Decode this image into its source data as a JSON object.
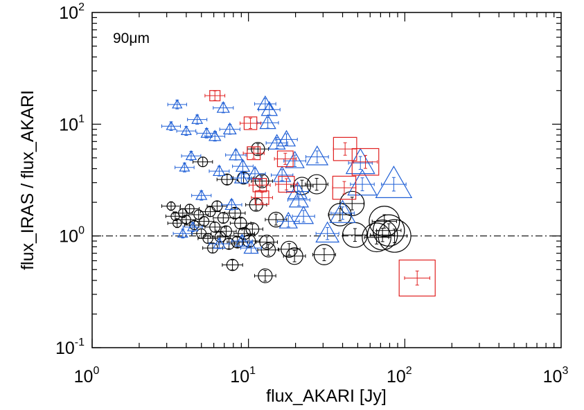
{
  "chart_data": {
    "type": "scatter",
    "title": "",
    "xlabel": "flux_AKARI [Jy]",
    "ylabel": "flux_IRAS / flux_AKARI",
    "annotation": "90μm",
    "x_scale": "log",
    "y_scale": "log",
    "xlim": [
      1,
      1000
    ],
    "ylim": [
      0.1,
      100
    ],
    "grid": false,
    "x_ticks": [
      {
        "base": "10",
        "exp": "0",
        "value": 1
      },
      {
        "base": "10",
        "exp": "1",
        "value": 10
      },
      {
        "base": "10",
        "exp": "2",
        "value": 100
      },
      {
        "base": "10",
        "exp": "3",
        "value": 1000
      }
    ],
    "y_ticks": [
      {
        "base": "10",
        "exp": "-1",
        "value": 0.1
      },
      {
        "base": "10",
        "exp": "0",
        "value": 1
      },
      {
        "base": "10",
        "exp": "1",
        "value": 10
      },
      {
        "base": "10",
        "exp": "2",
        "value": 100
      }
    ],
    "reference_line": {
      "y": 1.0,
      "style": "dash-dot"
    },
    "series": [
      {
        "color": "#000000",
        "marker": "circle",
        "points": [
          {
            "x": 3.2,
            "y": 1.85
          },
          {
            "x": 3.4,
            "y": 1.5
          },
          {
            "x": 3.5,
            "y": 1.3
          },
          {
            "x": 3.8,
            "y": 1.6
          },
          {
            "x": 4.0,
            "y": 1.4
          },
          {
            "x": 4.2,
            "y": 1.75
          },
          {
            "x": 4.5,
            "y": 1.25
          },
          {
            "x": 4.8,
            "y": 1.55
          },
          {
            "x": 5.0,
            "y": 1.05
          },
          {
            "x": 5.2,
            "y": 1.35
          },
          {
            "x": 5.5,
            "y": 0.95
          },
          {
            "x": 5.7,
            "y": 1.65
          },
          {
            "x": 5.9,
            "y": 0.78
          },
          {
            "x": 6.1,
            "y": 1.2
          },
          {
            "x": 6.3,
            "y": 1.85
          },
          {
            "x": 6.6,
            "y": 0.98
          },
          {
            "x": 6.9,
            "y": 1.45
          },
          {
            "x": 7.2,
            "y": 1.1
          },
          {
            "x": 7.5,
            "y": 0.85
          },
          {
            "x": 7.9,
            "y": 0.55
          },
          {
            "x": 8.2,
            "y": 1.6
          },
          {
            "x": 8.5,
            "y": 0.88
          },
          {
            "x": 8.9,
            "y": 1.3
          },
          {
            "x": 9.4,
            "y": 1.05
          },
          {
            "x": 10.1,
            "y": 0.9
          },
          {
            "x": 10.6,
            "y": 1.15
          },
          {
            "x": 11.2,
            "y": 1.9
          },
          {
            "x": 11.5,
            "y": 6.0
          },
          {
            "x": 12.2,
            "y": 3.1
          },
          {
            "x": 12.8,
            "y": 0.44
          },
          {
            "x": 13.1,
            "y": 0.88
          },
          {
            "x": 13.4,
            "y": 0.75
          },
          {
            "x": 7.3,
            "y": 3.2
          },
          {
            "x": 9.3,
            "y": 3.3
          },
          {
            "x": 5.1,
            "y": 4.6
          },
          {
            "x": 15.0,
            "y": 1.4
          },
          {
            "x": 18.2,
            "y": 0.76
          },
          {
            "x": 19.7,
            "y": 0.66
          },
          {
            "x": 22.0,
            "y": 2.8
          },
          {
            "x": 27.3,
            "y": 2.9
          },
          {
            "x": 30.5,
            "y": 0.68
          },
          {
            "x": 38.5,
            "y": 1.55
          },
          {
            "x": 46.0,
            "y": 1.95
          },
          {
            "x": 48.0,
            "y": 1.02
          },
          {
            "x": 66.0,
            "y": 0.97
          },
          {
            "x": 74.0,
            "y": 1.35
          },
          {
            "x": 79.0,
            "y": 1.12
          },
          {
            "x": 72.0,
            "y": 1.02
          },
          {
            "x": 86.0,
            "y": 1.0
          }
        ]
      },
      {
        "color": "#1f5fd6",
        "marker": "triangle",
        "points": [
          {
            "x": 3.5,
            "y": 15.0
          },
          {
            "x": 3.2,
            "y": 9.6
          },
          {
            "x": 4.0,
            "y": 8.7
          },
          {
            "x": 4.3,
            "y": 5.2
          },
          {
            "x": 3.9,
            "y": 4.1
          },
          {
            "x": 4.7,
            "y": 11.0
          },
          {
            "x": 5.4,
            "y": 8.3
          },
          {
            "x": 6.1,
            "y": 7.8
          },
          {
            "x": 6.9,
            "y": 14.0
          },
          {
            "x": 7.6,
            "y": 9.0
          },
          {
            "x": 8.3,
            "y": 5.3
          },
          {
            "x": 9.2,
            "y": 4.2
          },
          {
            "x": 6.5,
            "y": 3.8
          },
          {
            "x": 5.0,
            "y": 2.3
          },
          {
            "x": 4.4,
            "y": 1.2
          },
          {
            "x": 3.8,
            "y": 1.05
          },
          {
            "x": 6.5,
            "y": 0.85
          },
          {
            "x": 9.1,
            "y": 0.9
          },
          {
            "x": 10.4,
            "y": 0.78
          },
          {
            "x": 7.8,
            "y": 1.9
          },
          {
            "x": 12.8,
            "y": 15.2
          },
          {
            "x": 13.6,
            "y": 13.5
          },
          {
            "x": 13.3,
            "y": 10.3
          },
          {
            "x": 15.2,
            "y": 6.8
          },
          {
            "x": 17.5,
            "y": 7.3
          },
          {
            "x": 19.8,
            "y": 4.7
          },
          {
            "x": 16.4,
            "y": 3.5
          },
          {
            "x": 20.6,
            "y": 2.5
          },
          {
            "x": 21.0,
            "y": 2.1
          },
          {
            "x": 18.0,
            "y": 1.35
          },
          {
            "x": 22.5,
            "y": 1.5
          },
          {
            "x": 27.5,
            "y": 5.1
          },
          {
            "x": 32.0,
            "y": 1.05
          },
          {
            "x": 52.0,
            "y": 4.5
          },
          {
            "x": 53.5,
            "y": 2.9
          },
          {
            "x": 85.0,
            "y": 2.9
          },
          {
            "x": 40.0,
            "y": 1.6
          },
          {
            "x": 11.0,
            "y": 3.6
          },
          {
            "x": 9.0,
            "y": 3.3
          }
        ]
      },
      {
        "color": "#e02020",
        "marker": "square",
        "points": [
          {
            "x": 6.1,
            "y": 18.0
          },
          {
            "x": 10.3,
            "y": 10.2
          },
          {
            "x": 17.2,
            "y": 4.9
          },
          {
            "x": 11.8,
            "y": 2.85
          },
          {
            "x": 12.2,
            "y": 2.2
          },
          {
            "x": 17.5,
            "y": 2.9
          },
          {
            "x": 10.8,
            "y": 5.5
          },
          {
            "x": 41.5,
            "y": 6.0
          },
          {
            "x": 41.0,
            "y": 2.7
          },
          {
            "x": 56.0,
            "y": 4.6
          },
          {
            "x": 120.0,
            "y": 0.42
          }
        ]
      }
    ]
  }
}
